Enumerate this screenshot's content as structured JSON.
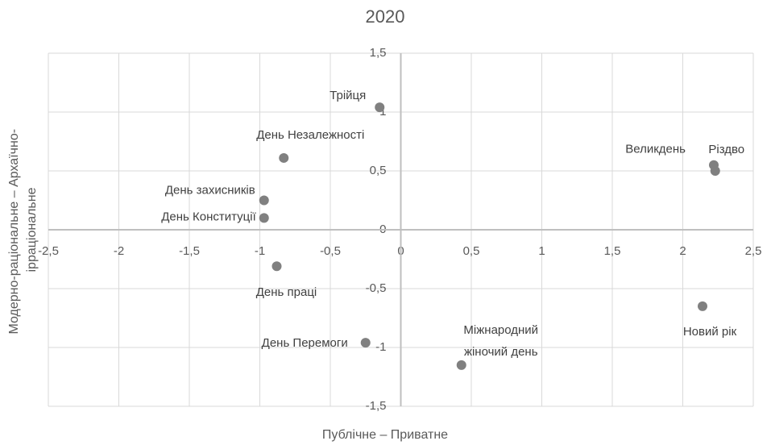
{
  "chart_data": {
    "type": "scatter",
    "title": "2020",
    "xlabel": "Публічне – Приватне",
    "ylabel": [
      "Модерно-раціональне – Архаїчно-",
      "ірраціональне"
    ],
    "series": [
      {
        "color": "#808080",
        "x": [
          -0.15,
          -0.83,
          -0.97,
          -0.97,
          -0.88,
          -0.25,
          0.43,
          2.14,
          2.22,
          2.23
        ],
        "values": [
          1.04,
          0.61,
          0.25,
          0.1,
          -0.31,
          -0.96,
          -1.15,
          -0.65,
          0.55,
          0.5
        ],
        "labels": [
          "Трійця",
          "День Незалежності",
          "День захисників",
          "День Конституції",
          "День праці",
          "День Перемоги",
          [
            "Міжнародний",
            "жіночий день"
          ],
          "Новий рік",
          "Великдень",
          "Різдво"
        ]
      }
    ],
    "xlim": [
      -2.5,
      2.5
    ],
    "xticks": [
      {
        "value": -2.5,
        "label": "-2,5"
      },
      -2,
      {
        "value": -1.5,
        "label": "-1,5"
      },
      -1,
      {
        "value": -0.5,
        "label": "-0,5"
      },
      0,
      {
        "value": 0.5,
        "label": "0,5"
      },
      1,
      {
        "value": 1.5,
        "label": "1,5"
      },
      2,
      {
        "value": 2.5,
        "label": "2,5"
      }
    ],
    "ylim": [
      -1.5,
      1.5
    ],
    "yticks": [
      {
        "value": -1.5,
        "label": "-1,5"
      },
      -1,
      {
        "value": -0.5,
        "label": "-0,5"
      },
      0,
      {
        "value": 0.5,
        "label": "0,5"
      },
      1,
      {
        "value": 1.5,
        "label": "1,5"
      }
    ],
    "grid": true
  }
}
